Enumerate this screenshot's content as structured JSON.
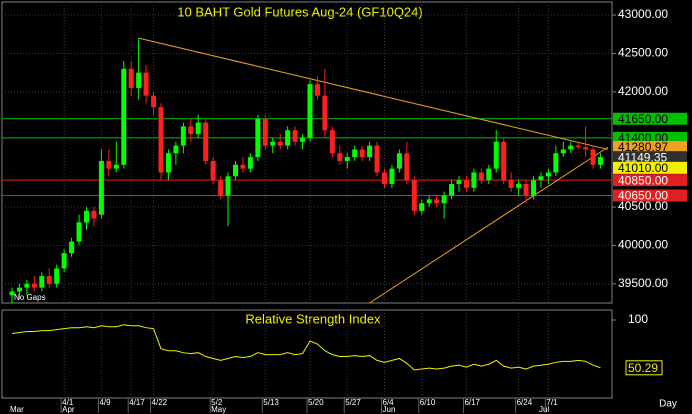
{
  "chart_data": {
    "type": "candlestick",
    "title": "10 BAHT Gold Futures Aug-24 (GF10Q24)",
    "note": "No Gaps",
    "period": "Day",
    "categories": [
      null,
      null,
      null,
      null,
      null,
      null,
      null,
      "4/1",
      null,
      null,
      null,
      null,
      "4/9",
      null,
      null,
      null,
      "4/17",
      null,
      null,
      "4/22",
      null,
      null,
      null,
      null,
      null,
      null,
      null,
      "5/2",
      null,
      null,
      null,
      null,
      null,
      null,
      "5/13",
      null,
      null,
      null,
      null,
      null,
      "5/20",
      null,
      null,
      null,
      null,
      "5/27",
      null,
      null,
      null,
      null,
      "6/4",
      null,
      null,
      null,
      null,
      "6/10",
      null,
      null,
      null,
      null,
      null,
      "6/17",
      null,
      null,
      null,
      null,
      null,
      null,
      "6/24",
      null,
      null,
      null,
      "7/1",
      null,
      null,
      null,
      null,
      null,
      null,
      null,
      null
    ],
    "months": [
      "Mar",
      null,
      null,
      null,
      null,
      null,
      null,
      "Apr",
      null,
      null,
      null,
      null,
      null,
      null,
      null,
      null,
      null,
      null,
      null,
      null,
      null,
      null,
      null,
      null,
      null,
      null,
      null,
      "May",
      null,
      null,
      null,
      null,
      null,
      null,
      null,
      null,
      null,
      null,
      null,
      null,
      null,
      null,
      null,
      null,
      null,
      null,
      null,
      null,
      null,
      null,
      "Jun",
      null,
      null,
      null,
      null,
      null,
      null,
      null,
      null,
      null,
      null,
      null,
      null,
      null,
      null,
      null,
      null,
      null,
      null,
      null,
      null,
      "Jul",
      null,
      null,
      null,
      null,
      null,
      null,
      null,
      null
    ],
    "open": [
      39350,
      39400,
      39450,
      39500,
      39450,
      39600,
      39500,
      39700,
      39900,
      40050,
      40300,
      40450,
      40400,
      41100,
      41000,
      41050,
      42300,
      42050,
      42250,
      41950,
      41800,
      40950,
      41200,
      41300,
      41550,
      41450,
      41600,
      41100,
      40850,
      40650,
      40900,
      41050,
      41000,
      41150,
      41650,
      41300,
      41350,
      41300,
      41500,
      41350,
      41400,
      42100,
      41950,
      41500,
      41200,
      41100,
      41150,
      41250,
      41150,
      41300,
      40950,
      40800,
      41000,
      41200,
      40850,
      40450,
      40550,
      40600,
      40550,
      40650,
      40800,
      40850,
      40750,
      40950,
      40850,
      41000,
      41350,
      40850,
      40750,
      40800,
      40650,
      40850,
      40900,
      40950,
      41200,
      41250,
      41300,
      41280,
      41250,
      41050
    ],
    "high": [
      39450,
      39500,
      39550,
      39600,
      39650,
      39700,
      39750,
      39950,
      40100,
      40400,
      40500,
      40500,
      41250,
      41250,
      41350,
      42400,
      42400,
      42700,
      42350,
      42000,
      41850,
      41250,
      41350,
      41600,
      41650,
      41700,
      41650,
      41150,
      40900,
      40950,
      41100,
      41150,
      41200,
      41700,
      41700,
      41400,
      41450,
      41550,
      41550,
      41450,
      42150,
      42200,
      42300,
      41550,
      41300,
      41200,
      41300,
      41300,
      41350,
      41350,
      41000,
      41050,
      41250,
      41350,
      40900,
      40600,
      40650,
      40650,
      40700,
      40850,
      40900,
      40900,
      41000,
      41000,
      41050,
      41500,
      41400,
      40950,
      40850,
      40850,
      40900,
      40950,
      41000,
      41300,
      41350,
      41350,
      41350,
      41550,
      41300,
      41200
    ],
    "low": [
      39250,
      39300,
      39350,
      39400,
      39400,
      39450,
      39450,
      39650,
      39850,
      40000,
      40200,
      40250,
      40350,
      40900,
      40950,
      41000,
      41950,
      41900,
      41850,
      41700,
      40850,
      40850,
      41050,
      41200,
      41350,
      41400,
      41050,
      40800,
      40600,
      40250,
      40850,
      40950,
      40950,
      41100,
      41250,
      41200,
      41250,
      41250,
      41300,
      41250,
      41350,
      41900,
      41400,
      41150,
      41050,
      41000,
      41100,
      41100,
      41100,
      40900,
      40750,
      40750,
      40950,
      40800,
      40400,
      40400,
      40500,
      40500,
      40350,
      40600,
      40700,
      40700,
      40700,
      40800,
      40800,
      40950,
      40800,
      40700,
      40650,
      40550,
      40600,
      40750,
      40800,
      40900,
      41150,
      41200,
      41250,
      41150,
      41000,
      41000
    ],
    "close": [
      39400,
      39450,
      39500,
      39450,
      39600,
      39500,
      39700,
      39900,
      40050,
      40300,
      40450,
      40350,
      41100,
      41000,
      41050,
      42300,
      42050,
      42250,
      41950,
      41800,
      40950,
      41200,
      41300,
      41550,
      41450,
      41600,
      41100,
      40850,
      40650,
      40900,
      41050,
      41000,
      41150,
      41650,
      41300,
      41350,
      41300,
      41500,
      41350,
      41400,
      42100,
      41950,
      41500,
      41200,
      41100,
      41150,
      41250,
      41150,
      41300,
      40950,
      40800,
      41000,
      41200,
      40850,
      40450,
      40550,
      40600,
      40550,
      40650,
      40800,
      40850,
      40750,
      40950,
      40850,
      41000,
      41350,
      40850,
      40750,
      40800,
      40650,
      40850,
      40900,
      40950,
      41200,
      41250,
      41300,
      41280,
      41250,
      41050,
      41150
    ],
    "up_color": "#00ff00",
    "down_color": "#ff2020",
    "ylim": [
      39250,
      43170
    ],
    "yticks": [
      {
        "value": 43000,
        "label": "43000.00"
      },
      {
        "value": 42500,
        "label": "42500.00"
      },
      {
        "value": 42000,
        "label": "42000.00"
      },
      {
        "value": 40500,
        "label": "40500.00"
      },
      {
        "value": 40000,
        "label": "40000.00"
      },
      {
        "value": 39500,
        "label": "39500.00"
      }
    ],
    "grid": true,
    "price_lines": [
      {
        "value": 41650,
        "label": "41650.00",
        "color": "#00c000"
      },
      {
        "value": 41400,
        "label": "41400.00",
        "color": "#00c000"
      },
      {
        "value": 40850,
        "label": "40850.00",
        "color": "#e02020"
      },
      {
        "value": 40650,
        "label": "40650.00",
        "color": "#e02020"
      }
    ],
    "price_labels": [
      {
        "value": 41280.97,
        "label": "41280.97",
        "color": "#f0a020"
      },
      {
        "value": 41149.35,
        "label": "41149.35",
        "color": "#303030"
      },
      {
        "value": 41010,
        "label": "41010.00",
        "color": "#f0f000"
      }
    ],
    "trendlines": [
      {
        "x": [
          17,
          80
        ],
        "y": [
          42700,
          41250
        ],
        "color": "#f0a020"
      },
      {
        "x": [
          48,
          80
        ],
        "y": [
          39250,
          41280
        ],
        "color": "#f0a020"
      }
    ],
    "rsi": {
      "title": "Relative Strength Index",
      "color": "#f0f000",
      "values": [
        86,
        87,
        88,
        88,
        89,
        89,
        90,
        91,
        92,
        92,
        93,
        92,
        94,
        93,
        93,
        95,
        94,
        94,
        92,
        91,
        70,
        68,
        68,
        66,
        65,
        66,
        62,
        60,
        58,
        60,
        62,
        61,
        62,
        66,
        64,
        64,
        64,
        66,
        64,
        65,
        78,
        75,
        68,
        64,
        62,
        62,
        63,
        62,
        63,
        58,
        56,
        58,
        60,
        55,
        48,
        49,
        50,
        49,
        50,
        52,
        53,
        51,
        54,
        52,
        54,
        58,
        52,
        50,
        51,
        49,
        52,
        53,
        54,
        56,
        57,
        57,
        58,
        57,
        53,
        50.29
      ],
      "value_label": "50.29",
      "ylim": [
        22,
        100
      ],
      "yticks": [
        100
      ]
    }
  }
}
